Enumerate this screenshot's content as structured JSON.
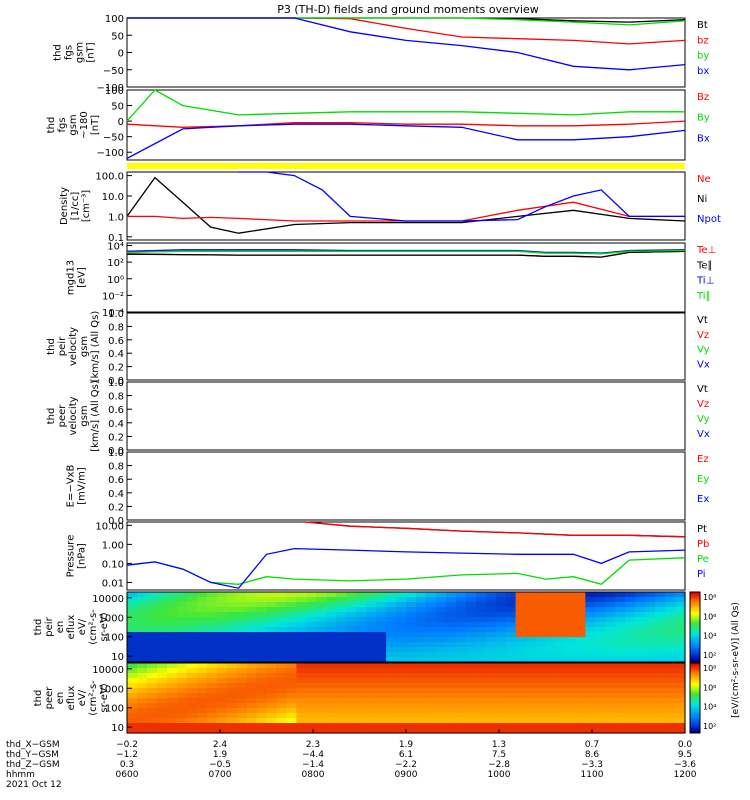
{
  "title": "P3 (TH-D) fields and ground moments overview",
  "colors": {
    "black": "#000000",
    "red": "#ff0000",
    "green": "#00dd00",
    "blue": "#0000ff",
    "yellow": "#ffff00"
  },
  "panels": [
    {
      "id": "fgs",
      "ylabel": [
        "thd",
        "fgs",
        "gsm",
        "[nT]"
      ],
      "scale": "linear",
      "ylim": [
        -100,
        100
      ],
      "ticks": [
        "100",
        "50",
        "0",
        "−50",
        "−100"
      ],
      "tickvals": [
        100,
        50,
        0,
        -50,
        -100
      ],
      "legend": [
        {
          "label": "Bt",
          "color": "#000000"
        },
        {
          "label": "bz",
          "color": "#ff0000"
        },
        {
          "label": "by",
          "color": "#00dd00"
        },
        {
          "label": "bx",
          "color": "#0000ff"
        }
      ],
      "series": [
        {
          "name": "Bt",
          "color": "#000000",
          "x": [
            0,
            0.1,
            0.2,
            0.3,
            0.4,
            0.5,
            0.6,
            0.7,
            0.8,
            0.9,
            1.0
          ],
          "y": [
            100,
            100,
            100,
            100,
            100,
            100,
            100,
            98,
            92,
            88,
            95
          ]
        },
        {
          "name": "bz",
          "color": "#ff0000",
          "x": [
            0,
            0.1,
            0.2,
            0.3,
            0.4,
            0.5,
            0.6,
            0.7,
            0.8,
            0.9,
            1.0
          ],
          "y": [
            100,
            100,
            100,
            100,
            98,
            70,
            45,
            40,
            35,
            25,
            35
          ]
        },
        {
          "name": "by",
          "color": "#00dd00",
          "x": [
            0,
            0.1,
            0.2,
            0.3,
            0.4,
            0.5,
            0.6,
            0.7,
            0.8,
            0.9,
            1.0
          ],
          "y": [
            100,
            100,
            100,
            100,
            100,
            100,
            100,
            95,
            88,
            80,
            92
          ]
        },
        {
          "name": "bx",
          "color": "#0000ff",
          "x": [
            0,
            0.1,
            0.2,
            0.3,
            0.4,
            0.5,
            0.6,
            0.7,
            0.8,
            0.9,
            1.0
          ],
          "y": [
            100,
            100,
            100,
            100,
            60,
            35,
            20,
            0,
            -40,
            -50,
            -35
          ]
        }
      ]
    },
    {
      "id": "fgs_dsl",
      "ylabel": [
        "thd",
        "fgs",
        "gsm",
        "~180",
        "[nT]"
      ],
      "scale": "linear",
      "ylim": [
        -125,
        100
      ],
      "ticks": [
        "100",
        "50",
        "0",
        "−50",
        "−100"
      ],
      "tickvals": [
        100,
        50,
        0,
        -50,
        -100
      ],
      "legend": [
        {
          "label": "Bz",
          "color": "#ff0000"
        },
        {
          "label": "By",
          "color": "#00dd00"
        },
        {
          "label": "Bx",
          "color": "#0000ff"
        }
      ],
      "series": [
        {
          "name": "Bz",
          "color": "#ff0000",
          "x": [
            0,
            0.1,
            0.2,
            0.3,
            0.4,
            0.5,
            0.6,
            0.7,
            0.8,
            0.9,
            1.0
          ],
          "y": [
            -10,
            -20,
            -15,
            -5,
            -5,
            -10,
            -10,
            -15,
            -15,
            -10,
            0
          ]
        },
        {
          "name": "By",
          "color": "#00dd00",
          "x": [
            0,
            0.05,
            0.1,
            0.2,
            0.3,
            0.4,
            0.5,
            0.6,
            0.7,
            0.8,
            0.9,
            1.0
          ],
          "y": [
            0,
            100,
            50,
            20,
            25,
            30,
            30,
            30,
            25,
            20,
            30,
            30
          ]
        },
        {
          "name": "Bx",
          "color": "#0000ff",
          "x": [
            0,
            0.1,
            0.2,
            0.3,
            0.4,
            0.5,
            0.6,
            0.7,
            0.8,
            0.9,
            1.0
          ],
          "y": [
            -120,
            -25,
            -15,
            -10,
            -10,
            -15,
            -20,
            -60,
            -60,
            -50,
            -30
          ]
        }
      ]
    },
    {
      "id": "density",
      "ylabel": [
        "Density",
        "[1/cc]",
        "[cm⁻³]"
      ],
      "scale": "log",
      "ylim": [
        0.07,
        150
      ],
      "ticks": [
        "100.0",
        "10.0",
        "1.0",
        "0.1"
      ],
      "tickvals": [
        100,
        10,
        1,
        0.1
      ],
      "legend": [
        {
          "label": "Ne",
          "color": "#ff0000"
        },
        {
          "label": "Ni",
          "color": "#000000"
        },
        {
          "label": "Npot",
          "color": "#0000ff"
        }
      ],
      "series": [
        {
          "name": "Ni",
          "color": "#000000",
          "x": [
            0,
            0.05,
            0.1,
            0.15,
            0.2,
            0.3,
            0.4,
            0.5,
            0.6,
            0.7,
            0.8,
            0.9,
            1.0
          ],
          "y": [
            1,
            80,
            5,
            0.3,
            0.15,
            0.4,
            0.5,
            0.5,
            0.5,
            1.0,
            2,
            0.8,
            0.6
          ]
        },
        {
          "name": "Ne",
          "color": "#ff0000",
          "x": [
            0,
            0.05,
            0.1,
            0.15,
            0.2,
            0.3,
            0.4,
            0.5,
            0.6,
            0.7,
            0.8,
            0.9,
            1.0
          ],
          "y": [
            1,
            1,
            0.8,
            0.9,
            0.8,
            0.6,
            0.6,
            0.6,
            0.6,
            2,
            5,
            1,
            1
          ]
        },
        {
          "name": "Npot",
          "color": "#0000ff",
          "x": [
            0.2,
            0.25,
            0.3,
            0.35,
            0.4,
            0.5,
            0.6,
            0.7,
            0.75,
            0.8,
            0.85,
            0.9,
            1.0
          ],
          "y": [
            200,
            200,
            100,
            20,
            1,
            0.6,
            0.6,
            0.7,
            3,
            10,
            20,
            1,
            1
          ]
        }
      ]
    },
    {
      "id": "temp",
      "ylabel": [
        "mgd13",
        "[eV]"
      ],
      "scale": "log",
      "ylim": [
        0.0001,
        20000
      ],
      "ticks": [
        "10⁴",
        "10²",
        "10⁰",
        "10⁻²",
        "10⁻⁴"
      ],
      "tickvals": [
        10000,
        100,
        1,
        0.01,
        0.0001
      ],
      "legend": [
        {
          "label": "Te⊥",
          "color": "#ff0000"
        },
        {
          "label": "Te∥",
          "color": "#000000"
        },
        {
          "label": "Ti⊥",
          "color": "#0000ff"
        },
        {
          "label": "Ti∥",
          "color": "#00dd00"
        }
      ],
      "series": [
        {
          "name": "Te⊥",
          "color": "#ff0000",
          "x": [
            0,
            0.1,
            0.2,
            0.3,
            0.4,
            0.5,
            0.6,
            0.7,
            0.75,
            0.8,
            0.85,
            0.9,
            1.0
          ],
          "y": [
            1000,
            800,
            700,
            700,
            700,
            700,
            700,
            700,
            500,
            500,
            400,
            1500,
            2000
          ]
        },
        {
          "name": "Te∥",
          "color": "#000000",
          "x": [
            0,
            0.1,
            0.2,
            0.3,
            0.4,
            0.5,
            0.6,
            0.7,
            0.75,
            0.8,
            0.85,
            0.9,
            1.0
          ],
          "y": [
            900,
            800,
            700,
            700,
            700,
            700,
            700,
            700,
            500,
            500,
            400,
            1500,
            2000
          ]
        },
        {
          "name": "Ti⊥",
          "color": "#0000ff",
          "x": [
            0,
            0.1,
            0.2,
            0.3,
            0.4,
            0.5,
            0.6,
            0.7,
            0.75,
            0.8,
            0.85,
            0.9,
            1.0
          ],
          "y": [
            2000,
            3000,
            3000,
            3000,
            2500,
            2500,
            2500,
            2500,
            1500,
            1500,
            1200,
            2500,
            3000
          ]
        },
        {
          "name": "Ti∥",
          "color": "#00dd00",
          "x": [
            0,
            0.1,
            0.2,
            0.3,
            0.4,
            0.5,
            0.6,
            0.7,
            0.75,
            0.8,
            0.85,
            0.9,
            1.0
          ],
          "y": [
            1500,
            2000,
            2000,
            2000,
            2000,
            2000,
            2000,
            2000,
            1200,
            1200,
            1000,
            2000,
            2500
          ]
        }
      ]
    },
    {
      "id": "peir_vel",
      "ylabel": [
        "thd",
        "peir",
        "velocity",
        "gsm",
        "[km/s] (All Qs)"
      ],
      "scale": "linear",
      "ylim": [
        0,
        1
      ],
      "ticks": [
        "1.0",
        "0.8",
        "0.6",
        "0.4",
        "0.2",
        "0.0"
      ],
      "tickvals": [
        1,
        0.8,
        0.6,
        0.4,
        0.2,
        0
      ],
      "legend": [
        {
          "label": "Vt",
          "color": "#000000"
        },
        {
          "label": "Vz",
          "color": "#ff0000"
        },
        {
          "label": "Vy",
          "color": "#00dd00"
        },
        {
          "label": "Vx",
          "color": "#0000ff"
        }
      ],
      "series": []
    },
    {
      "id": "peer_vel",
      "ylabel": [
        "thd",
        "peer",
        "velocity",
        "gsm",
        "[km/s] (All Qs)"
      ],
      "scale": "linear",
      "ylim": [
        0,
        1
      ],
      "ticks": [
        "1.0",
        "0.8",
        "0.6",
        "0.4",
        "0.2",
        "0.0"
      ],
      "tickvals": [
        1,
        0.8,
        0.6,
        0.4,
        0.2,
        0
      ],
      "legend": [
        {
          "label": "Vt",
          "color": "#000000"
        },
        {
          "label": "Vz",
          "color": "#ff0000"
        },
        {
          "label": "Vy",
          "color": "#00dd00"
        },
        {
          "label": "Vx",
          "color": "#0000ff"
        }
      ],
      "series": []
    },
    {
      "id": "efield",
      "ylabel": [
        "E=−VxB",
        "[mV/m]"
      ],
      "scale": "linear",
      "ylim": [
        0,
        1
      ],
      "ticks": [
        "1.0",
        "0.8",
        "0.6",
        "0.4",
        "0.2",
        "0.0"
      ],
      "tickvals": [
        1,
        0.8,
        0.6,
        0.4,
        0.2,
        0
      ],
      "legend": [
        {
          "label": "Ez",
          "color": "#ff0000"
        },
        {
          "label": "Ey",
          "color": "#00dd00"
        },
        {
          "label": "Ex",
          "color": "#0000ff"
        }
      ],
      "series": []
    },
    {
      "id": "pressure",
      "ylabel": [
        "Pressure",
        "[nPa]"
      ],
      "scale": "log",
      "ylim": [
        0.004,
        15
      ],
      "ticks": [
        "10.00",
        "1.00",
        "0.10",
        "0.01"
      ],
      "tickvals": [
        10,
        1,
        0.1,
        0.01
      ],
      "legend": [
        {
          "label": "Pt",
          "color": "#000000"
        },
        {
          "label": "Pb",
          "color": "#ff0000"
        },
        {
          "label": "Pe",
          "color": "#00dd00"
        },
        {
          "label": "Pi",
          "color": "#0000ff"
        }
      ],
      "series": [
        {
          "name": "Pt",
          "color": "#000000",
          "x": [
            0.32,
            0.4,
            0.5,
            0.6,
            0.7,
            0.8,
            0.9,
            1.0
          ],
          "y": [
            15,
            9,
            7,
            5,
            4,
            3,
            3,
            2.5
          ]
        },
        {
          "name": "Pb",
          "color": "#ff0000",
          "x": [
            0.32,
            0.4,
            0.5,
            0.6,
            0.7,
            0.8,
            0.9,
            1.0
          ],
          "y": [
            15,
            9,
            7,
            5,
            4,
            3,
            3,
            2.5
          ]
        },
        {
          "name": "Pe",
          "color": "#00dd00",
          "x": [
            0,
            0.05,
            0.1,
            0.15,
            0.2,
            0.25,
            0.3,
            0.4,
            0.5,
            0.6,
            0.7,
            0.75,
            0.8,
            0.85,
            0.9,
            1.0
          ],
          "y": [
            0.08,
            0.12,
            0.05,
            0.01,
            0.008,
            0.02,
            0.015,
            0.012,
            0.015,
            0.025,
            0.03,
            0.015,
            0.02,
            0.008,
            0.15,
            0.2
          ]
        },
        {
          "name": "Pi",
          "color": "#0000ff",
          "x": [
            0,
            0.05,
            0.1,
            0.15,
            0.2,
            0.25,
            0.3,
            0.4,
            0.5,
            0.6,
            0.7,
            0.75,
            0.8,
            0.85,
            0.9,
            1.0
          ],
          "y": [
            0.08,
            0.12,
            0.05,
            0.01,
            0.005,
            0.3,
            0.6,
            0.5,
            0.4,
            0.35,
            0.3,
            0.3,
            0.3,
            0.1,
            0.4,
            0.5
          ]
        }
      ]
    },
    {
      "id": "peir_eflux",
      "ylabel": [
        "thd",
        "peir",
        "en",
        "eflux",
        "eV/",
        "(cm²-s-",
        "sr-eV)"
      ],
      "scale": "spectrogram",
      "ylim": [
        5,
        20000
      ],
      "ticks": [
        "10000",
        "1000",
        "100",
        "10"
      ],
      "tickvals": [
        10000,
        1000,
        100,
        10
      ],
      "legend": [],
      "series": []
    },
    {
      "id": "peer_eflux",
      "ylabel": [
        "thd",
        "peer",
        "en",
        "eflux",
        "eV/",
        "(cm²-s-",
        "sr-eV)"
      ],
      "scale": "spectrogram",
      "ylim": [
        5,
        20000
      ],
      "ticks": [
        "10000",
        "1000",
        "100",
        "10"
      ],
      "tickvals": [
        10000,
        1000,
        100,
        10
      ],
      "legend": [],
      "series": []
    }
  ],
  "colorbar": {
    "label": "[eV/(cm²-s-sr-eV)]",
    "label2": "[eV/(cm²-s-sr-eV)] (All Qs)",
    "ticks_top": [
      "10⁸",
      "10⁶",
      "10⁴",
      "10²"
    ],
    "ticks_bottom": [
      "10⁸",
      "10⁶",
      "10⁴",
      "10²"
    ]
  },
  "xaxis": {
    "rows": [
      {
        "label": "thd_X−GSM",
        "values": [
          "−0.2",
          "2.4",
          "2.3",
          "1.9",
          "1.3",
          "0.7",
          "0.0"
        ]
      },
      {
        "label": "thd_Y−GSM",
        "values": [
          "−1.2",
          "1.9",
          "−4.4",
          "6.1",
          "7.5",
          "8.6",
          "9.5"
        ]
      },
      {
        "label": "thd_Z−GSM",
        "values": [
          "0.3",
          "−0.5",
          "−1.4",
          "−2.2",
          "−2.8",
          "−3.3",
          "−3.6"
        ]
      },
      {
        "label": "hhmm",
        "values": [
          "0600",
          "0700",
          "0800",
          "0900",
          "1000",
          "1100",
          "1200"
        ]
      }
    ],
    "date": "2021 Oct 12"
  },
  "chart_data": {
    "type": "line",
    "title": "P3 (TH-D) fields and ground moments overview",
    "x_categories": [
      "0600",
      "0700",
      "0800",
      "0900",
      "1000",
      "1100",
      "1200"
    ],
    "date": "2021 Oct 12",
    "note": "multi-panel time series; per-panel series in panels[].series"
  }
}
